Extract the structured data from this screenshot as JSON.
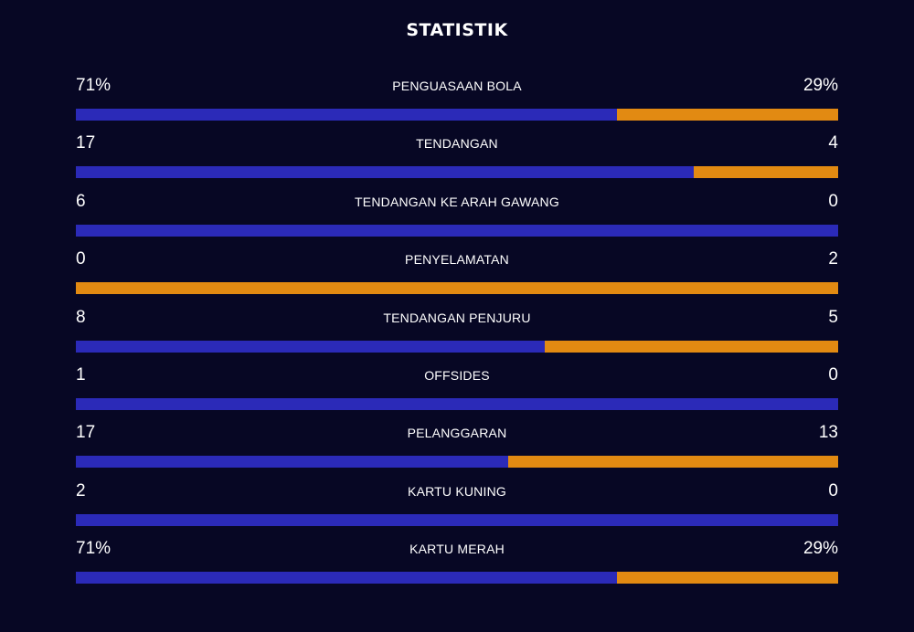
{
  "title": "STATISTIK",
  "colors": {
    "background": "#070724",
    "home": "#2b2ab8",
    "away": "#e28a12"
  },
  "stats": [
    {
      "label": "PENGUASAAN BOLA",
      "home": "71%",
      "away": "29%",
      "home_share": 0.71
    },
    {
      "label": "TENDANGAN",
      "home": "17",
      "away": "4",
      "home_share": 0.81
    },
    {
      "label": "TENDANGAN KE ARAH GAWANG",
      "home": "6",
      "away": "0",
      "home_share": 1.0
    },
    {
      "label": "PENYELAMATAN",
      "home": "0",
      "away": "2",
      "home_share": 0.0
    },
    {
      "label": "TENDANGAN PENJURU",
      "home": "8",
      "away": "5",
      "home_share": 0.615
    },
    {
      "label": "OFFSIDES",
      "home": "1",
      "away": "0",
      "home_share": 1.0
    },
    {
      "label": "PELANGGARAN",
      "home": "17",
      "away": "13",
      "home_share": 0.567
    },
    {
      "label": "KARTU KUNING",
      "home": "2",
      "away": "0",
      "home_share": 1.0
    },
    {
      "label": "KARTU MERAH",
      "home": "71%",
      "away": "29%",
      "home_share": 0.71
    }
  ]
}
